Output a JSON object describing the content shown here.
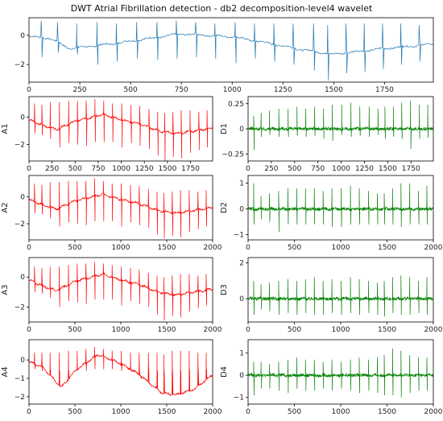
{
  "figure": {
    "title": "DWT Atrial Fibrillation detection - db2 decomposition-level4 wavelet",
    "colors": {
      "signal": "#1f77b4",
      "approx": "#ff0000",
      "detail": "#008000"
    }
  },
  "chart_data": [
    {
      "id": "signal",
      "type": "line",
      "ylabel": "",
      "xlim": [
        0,
        1990
      ],
      "ylim": [
        -3.2,
        1.2
      ],
      "xticks": [
        0,
        250,
        500,
        750,
        1000,
        1250,
        1500,
        1750
      ],
      "yticks": [
        0,
        -2
      ],
      "baseline": [
        [
          0,
          -0.1
        ],
        [
          100,
          -0.2
        ],
        [
          200,
          -0.9
        ],
        [
          400,
          -0.6
        ],
        [
          750,
          0.1
        ],
        [
          1000,
          -0.1
        ],
        [
          1200,
          -0.6
        ],
        [
          1350,
          -1.0
        ],
        [
          1500,
          -1.3
        ],
        [
          1750,
          -0.9
        ],
        [
          1990,
          -0.6
        ]
      ],
      "beats": [
        [
          60,
          1.0,
          -1.5
        ],
        [
          140,
          0.9,
          -1.2
        ],
        [
          235,
          0.8,
          -1.3
        ],
        [
          335,
          0.9,
          -2.0
        ],
        [
          430,
          0.8,
          -1.8
        ],
        [
          530,
          0.9,
          -1.6
        ],
        [
          630,
          0.9,
          -1.7
        ],
        [
          725,
          1.0,
          -1.6
        ],
        [
          820,
          0.9,
          -1.5
        ],
        [
          915,
          0.8,
          -1.6
        ],
        [
          1015,
          0.9,
          -1.9
        ],
        [
          1110,
          0.8,
          -1.6
        ],
        [
          1205,
          0.8,
          -1.8
        ],
        [
          1300,
          0.8,
          -2.0
        ],
        [
          1400,
          0.8,
          -2.4
        ],
        [
          1470,
          0.7,
          -3.1
        ],
        [
          1560,
          0.8,
          -2.6
        ],
        [
          1650,
          0.8,
          -2.5
        ],
        [
          1740,
          0.8,
          -2.3
        ],
        [
          1830,
          0.8,
          -2.0
        ],
        [
          1920,
          0.7,
          -1.8
        ]
      ]
    },
    {
      "id": "A1",
      "type": "line",
      "ylabel": "A1",
      "xlim": [
        0,
        1990
      ],
      "ylim": [
        -3.2,
        1.5
      ],
      "xticks": [
        0,
        250,
        500,
        750,
        1000,
        1250,
        1500,
        1750
      ],
      "yticks": [
        0,
        -2
      ],
      "baseline": [
        [
          0,
          -0.2
        ],
        [
          150,
          -0.6
        ],
        [
          300,
          -0.9
        ],
        [
          500,
          -0.3
        ],
        [
          800,
          0.2
        ],
        [
          1000,
          -0.2
        ],
        [
          1200,
          -0.5
        ],
        [
          1400,
          -1.0
        ],
        [
          1600,
          -1.2
        ],
        [
          1800,
          -1.0
        ],
        [
          1990,
          -0.8
        ]
      ],
      "beats": [
        [
          60,
          1.0,
          -1.2
        ],
        [
          140,
          0.9,
          -1.3
        ],
        [
          230,
          1.1,
          -1.6
        ],
        [
          330,
          1.1,
          -2.2
        ],
        [
          430,
          1.2,
          -1.9
        ],
        [
          525,
          1.2,
          -2.0
        ],
        [
          620,
          1.2,
          -2.1
        ],
        [
          715,
          1.3,
          -1.8
        ],
        [
          810,
          1.2,
          -1.8
        ],
        [
          905,
          1.0,
          -1.8
        ],
        [
          1005,
          1.0,
          -2.2
        ],
        [
          1105,
          0.9,
          -1.9
        ],
        [
          1200,
          0.8,
          -2.1
        ],
        [
          1300,
          0.6,
          -2.3
        ],
        [
          1395,
          0.4,
          -2.8
        ],
        [
          1470,
          0.3,
          -3.2
        ],
        [
          1560,
          0.4,
          -2.9
        ],
        [
          1650,
          0.5,
          -3.0
        ],
        [
          1745,
          0.5,
          -2.6
        ],
        [
          1840,
          0.4,
          -2.4
        ],
        [
          1930,
          0.5,
          -2.2
        ]
      ]
    },
    {
      "id": "D1",
      "type": "line",
      "ylabel": "D1",
      "xlim": [
        0,
        1990
      ],
      "ylim": [
        -0.32,
        0.32
      ],
      "xticks": [
        0,
        250,
        500,
        750,
        1000,
        1250,
        1500,
        1750
      ],
      "yticks": [
        0.25,
        0.0,
        -0.25
      ],
      "baseline": [
        [
          0,
          0
        ],
        [
          1990,
          0
        ]
      ],
      "beats": [
        [
          60,
          0.13,
          -0.21
        ],
        [
          140,
          0.16,
          -0.08
        ],
        [
          230,
          0.18,
          -0.06
        ],
        [
          330,
          0.2,
          -0.08
        ],
        [
          430,
          0.2,
          -0.08
        ],
        [
          525,
          0.22,
          -0.07
        ],
        [
          620,
          0.2,
          -0.08
        ],
        [
          715,
          0.22,
          -0.07
        ],
        [
          810,
          0.2,
          -0.1
        ],
        [
          905,
          0.24,
          -0.12
        ],
        [
          1005,
          0.24,
          -0.06
        ],
        [
          1105,
          0.26,
          -0.08
        ],
        [
          1200,
          0.22,
          -0.07
        ],
        [
          1300,
          0.22,
          -0.08
        ],
        [
          1395,
          0.2,
          -0.06
        ],
        [
          1470,
          0.22,
          -0.1
        ],
        [
          1560,
          0.22,
          -0.08
        ],
        [
          1650,
          0.26,
          -0.1
        ],
        [
          1745,
          0.28,
          -0.2
        ],
        [
          1840,
          0.24,
          -0.1
        ],
        [
          1930,
          0.24,
          -0.09
        ]
      ]
    },
    {
      "id": "A2",
      "type": "line",
      "ylabel": "A2",
      "xlim": [
        0,
        2000
      ],
      "ylim": [
        -3.2,
        1.6
      ],
      "xticks": [
        0,
        500,
        1000,
        1500,
        2000
      ],
      "yticks": [
        0,
        -2
      ],
      "baseline": [
        [
          0,
          -0.2
        ],
        [
          150,
          -0.6
        ],
        [
          300,
          -0.9
        ],
        [
          500,
          -0.3
        ],
        [
          800,
          0.2
        ],
        [
          1000,
          -0.2
        ],
        [
          1200,
          -0.5
        ],
        [
          1400,
          -1.0
        ],
        [
          1600,
          -1.2
        ],
        [
          1800,
          -1.0
        ],
        [
          2000,
          -0.8
        ]
      ],
      "beats": [
        [
          60,
          1.0,
          -1.2
        ],
        [
          140,
          0.9,
          -1.3
        ],
        [
          230,
          1.1,
          -1.6
        ],
        [
          330,
          1.1,
          -2.2
        ],
        [
          430,
          1.2,
          -1.9
        ],
        [
          525,
          1.2,
          -2.0
        ],
        [
          620,
          1.2,
          -2.1
        ],
        [
          715,
          1.4,
          -1.8
        ],
        [
          810,
          1.2,
          -1.8
        ],
        [
          905,
          1.0,
          -1.8
        ],
        [
          1005,
          1.0,
          -2.2
        ],
        [
          1105,
          0.9,
          -1.9
        ],
        [
          1200,
          0.8,
          -2.1
        ],
        [
          1300,
          0.6,
          -2.3
        ],
        [
          1395,
          0.4,
          -2.8
        ],
        [
          1470,
          0.3,
          -3.1
        ],
        [
          1560,
          0.4,
          -2.9
        ],
        [
          1650,
          0.5,
          -3.0
        ],
        [
          1745,
          0.5,
          -2.6
        ],
        [
          1840,
          0.4,
          -2.4
        ],
        [
          1930,
          0.5,
          -2.2
        ]
      ]
    },
    {
      "id": "D2",
      "type": "line",
      "ylabel": "D2",
      "xlim": [
        0,
        2000
      ],
      "ylim": [
        -1.2,
        1.3
      ],
      "xticks": [
        0,
        500,
        1000,
        1500,
        2000
      ],
      "yticks": [
        1,
        0,
        -1
      ],
      "baseline": [
        [
          0,
          0
        ],
        [
          2000,
          0
        ]
      ],
      "beats": [
        [
          60,
          1.0,
          -0.6
        ],
        [
          140,
          0.5,
          -0.4
        ],
        [
          230,
          0.6,
          -0.5
        ],
        [
          330,
          0.7,
          -0.9
        ],
        [
          430,
          0.8,
          -0.6
        ],
        [
          525,
          0.8,
          -0.6
        ],
        [
          620,
          0.8,
          -0.6
        ],
        [
          715,
          0.8,
          -0.6
        ],
        [
          810,
          0.7,
          -0.6
        ],
        [
          905,
          0.8,
          -0.7
        ],
        [
          1005,
          0.8,
          -0.7
        ],
        [
          1105,
          0.9,
          -0.6
        ],
        [
          1200,
          0.8,
          -0.6
        ],
        [
          1300,
          0.7,
          -0.6
        ],
        [
          1395,
          0.6,
          -0.6
        ],
        [
          1470,
          0.6,
          -0.6
        ],
        [
          1560,
          0.8,
          -0.6
        ],
        [
          1650,
          1.0,
          -0.7
        ],
        [
          1745,
          1.0,
          -0.6
        ],
        [
          1840,
          0.7,
          -0.6
        ],
        [
          1930,
          0.9,
          -0.6
        ]
      ]
    },
    {
      "id": "A3",
      "type": "line",
      "ylabel": "A3",
      "xlim": [
        0,
        2000
      ],
      "ylim": [
        -3.0,
        1.3
      ],
      "xticks": [
        0,
        500,
        1000,
        1500,
        2000
      ],
      "yticks": [
        0,
        -2
      ],
      "baseline": [
        [
          0,
          -0.2
        ],
        [
          150,
          -0.6
        ],
        [
          300,
          -0.9
        ],
        [
          500,
          -0.3
        ],
        [
          800,
          0.2
        ],
        [
          1000,
          -0.2
        ],
        [
          1200,
          -0.5
        ],
        [
          1400,
          -1.0
        ],
        [
          1600,
          -1.2
        ],
        [
          1800,
          -1.0
        ],
        [
          2000,
          -0.8
        ]
      ],
      "beats": [
        [
          60,
          0.7,
          -1.0
        ],
        [
          140,
          0.6,
          -1.1
        ],
        [
          230,
          0.7,
          -1.4
        ],
        [
          330,
          0.7,
          -2.0
        ],
        [
          430,
          0.8,
          -1.6
        ],
        [
          525,
          0.9,
          -1.7
        ],
        [
          620,
          0.9,
          -1.8
        ],
        [
          715,
          1.0,
          -1.5
        ],
        [
          810,
          0.9,
          -1.5
        ],
        [
          905,
          0.8,
          -1.5
        ],
        [
          1005,
          0.7,
          -1.9
        ],
        [
          1105,
          0.6,
          -1.6
        ],
        [
          1200,
          0.5,
          -1.8
        ],
        [
          1300,
          0.3,
          -2.0
        ],
        [
          1395,
          0.1,
          -2.5
        ],
        [
          1470,
          0.0,
          -2.9
        ],
        [
          1560,
          0.1,
          -2.6
        ],
        [
          1650,
          0.2,
          -2.7
        ],
        [
          1745,
          0.2,
          -2.3
        ],
        [
          1840,
          0.1,
          -2.1
        ],
        [
          1930,
          0.2,
          -1.9
        ]
      ]
    },
    {
      "id": "D3",
      "type": "line",
      "ylabel": "D3",
      "xlim": [
        0,
        2000
      ],
      "ylim": [
        -1.3,
        2.3
      ],
      "xticks": [
        0,
        500,
        1000,
        1500,
        2000
      ],
      "yticks": [
        2,
        0
      ],
      "baseline": [
        [
          0,
          0
        ],
        [
          2000,
          0
        ]
      ],
      "beats": [
        [
          60,
          1.0,
          -0.9
        ],
        [
          140,
          0.8,
          -0.6
        ],
        [
          230,
          0.9,
          -0.7
        ],
        [
          330,
          1.0,
          -0.9
        ],
        [
          430,
          1.1,
          -0.8
        ],
        [
          525,
          1.0,
          -0.9
        ],
        [
          620,
          1.1,
          -0.8
        ],
        [
          715,
          1.2,
          -0.9
        ],
        [
          810,
          1.0,
          -0.9
        ],
        [
          905,
          1.1,
          -0.8
        ],
        [
          1005,
          1.0,
          -0.9
        ],
        [
          1105,
          1.2,
          -0.8
        ],
        [
          1200,
          1.1,
          -0.9
        ],
        [
          1300,
          1.0,
          -0.8
        ],
        [
          1395,
          0.9,
          -0.9
        ],
        [
          1470,
          1.0,
          -1.0
        ],
        [
          1560,
          1.2,
          -0.8
        ],
        [
          1650,
          1.3,
          -0.9
        ],
        [
          1745,
          1.2,
          -0.9
        ],
        [
          1840,
          1.0,
          -0.8
        ],
        [
          1930,
          1.2,
          -0.9
        ]
      ]
    },
    {
      "id": "A4",
      "type": "line",
      "ylabel": "A4",
      "xlim": [
        0,
        2000
      ],
      "ylim": [
        -2.4,
        1.1
      ],
      "xticks": [
        0,
        500,
        1000,
        1500,
        2000
      ],
      "yticks": [
        0,
        -1,
        -2
      ],
      "baseline": [
        [
          0,
          -0.1
        ],
        [
          150,
          -0.4
        ],
        [
          350,
          -1.5
        ],
        [
          500,
          -0.6
        ],
        [
          750,
          0.3
        ],
        [
          1000,
          -0.2
        ],
        [
          1200,
          -0.8
        ],
        [
          1450,
          -1.8
        ],
        [
          1600,
          -1.9
        ],
        [
          1800,
          -1.6
        ],
        [
          2000,
          -0.8
        ]
      ],
      "beats": [
        [
          60,
          0.4,
          -0.5
        ],
        [
          140,
          0.4,
          -0.6
        ],
        [
          230,
          0.4,
          -0.5
        ],
        [
          330,
          0.4,
          -0.6
        ],
        [
          430,
          0.5,
          -0.6
        ],
        [
          525,
          0.5,
          -0.5
        ],
        [
          620,
          0.6,
          -0.6
        ],
        [
          715,
          0.7,
          -0.5
        ],
        [
          810,
          0.6,
          -0.5
        ],
        [
          905,
          0.5,
          -0.5
        ],
        [
          1005,
          0.5,
          -0.6
        ],
        [
          1105,
          0.4,
          -0.5
        ],
        [
          1200,
          0.4,
          -0.6
        ],
        [
          1300,
          0.4,
          -0.5
        ],
        [
          1395,
          0.4,
          -0.6
        ],
        [
          1470,
          0.3,
          -0.6
        ],
        [
          1560,
          0.5,
          -0.6
        ],
        [
          1650,
          0.5,
          -0.6
        ],
        [
          1745,
          0.5,
          -0.5
        ],
        [
          1840,
          0.4,
          -0.5
        ],
        [
          1930,
          0.4,
          -0.5
        ]
      ]
    },
    {
      "id": "D4",
      "type": "line",
      "ylabel": "D4",
      "xlim": [
        0,
        2000
      ],
      "ylim": [
        -1.3,
        1.6
      ],
      "xticks": [
        0,
        500,
        1000,
        1500,
        2000
      ],
      "yticks": [
        1,
        0,
        -1
      ],
      "baseline": [
        [
          0,
          0
        ],
        [
          2000,
          0
        ]
      ],
      "beats": [
        [
          60,
          0.6,
          -0.9
        ],
        [
          140,
          0.6,
          -0.6
        ],
        [
          230,
          0.5,
          -0.6
        ],
        [
          330,
          0.6,
          -0.7
        ],
        [
          430,
          0.7,
          -0.8
        ],
        [
          525,
          0.8,
          -0.6
        ],
        [
          620,
          0.7,
          -0.7
        ],
        [
          715,
          0.7,
          -0.7
        ],
        [
          810,
          0.6,
          -0.6
        ],
        [
          905,
          0.7,
          -0.7
        ],
        [
          1005,
          0.6,
          -0.6
        ],
        [
          1105,
          0.7,
          -0.7
        ],
        [
          1200,
          0.8,
          -0.8
        ],
        [
          1300,
          0.7,
          -0.7
        ],
        [
          1395,
          0.8,
          -0.8
        ],
        [
          1470,
          0.9,
          -0.9
        ],
        [
          1560,
          1.2,
          -0.9
        ],
        [
          1650,
          1.1,
          -1.0
        ],
        [
          1745,
          0.9,
          -0.8
        ],
        [
          1840,
          0.8,
          -0.7
        ],
        [
          1930,
          0.8,
          -0.7
        ]
      ]
    }
  ]
}
